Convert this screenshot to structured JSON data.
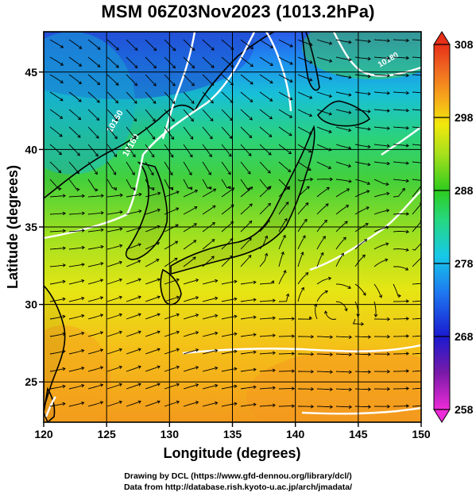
{
  "title": "MSM 06Z03Nov2023 (1013.2hPa)",
  "axes": {
    "xlabel": "Longitude (degrees)",
    "ylabel": "Latitude  (degrees)",
    "x_ticks": [
      "120",
      "125",
      "130",
      "135",
      "140",
      "145",
      "150"
    ],
    "y_ticks": [
      "25",
      "30",
      "35",
      "40",
      "45"
    ],
    "xlim": [
      120,
      150
    ],
    "ylim": [
      22.4,
      47.6
    ]
  },
  "colorbar": {
    "ticks": [
      "258",
      "268",
      "278",
      "288",
      "298",
      "308"
    ],
    "range": [
      258,
      308
    ],
    "colors": [
      "#ee2bd8",
      "#7a1aa8",
      "#1a1ad0",
      "#1e78f0",
      "#16c8e8",
      "#26d880",
      "#2ecc1e",
      "#a6e01c",
      "#f2e80c",
      "#f6a21c",
      "#f06a22",
      "#e83018"
    ]
  },
  "contour_labels": [
    "10160",
    "10160",
    "10180"
  ],
  "credit": {
    "line1": "Drawing by DCL (https://www.gfd-dennou.org/library/dcl/)",
    "line2": "Data from http://database.rish.kyoto-u.ac.jp/arch/jmadata/"
  },
  "colors": {
    "land_outline": "#000000",
    "streamline": "#000000",
    "contour": "#ffffff",
    "grid": "#000000"
  }
}
